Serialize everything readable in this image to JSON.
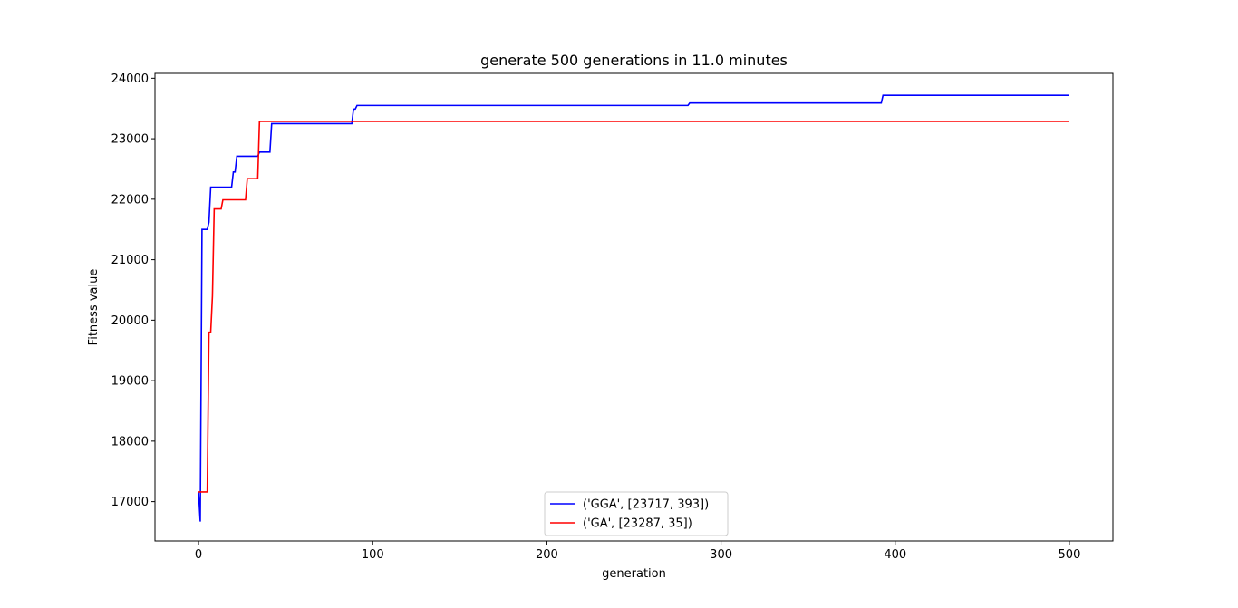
{
  "chart_data": {
    "type": "line",
    "title": "generate 500 generations in 11.0 minutes",
    "xlabel": "generation",
    "ylabel": "Fitness value",
    "xlim": [
      -25,
      525
    ],
    "ylim": [
      16350,
      24080
    ],
    "xticks": [
      0,
      100,
      200,
      300,
      400,
      500
    ],
    "yticks": [
      17000,
      18000,
      19000,
      20000,
      21000,
      22000,
      23000,
      24000
    ],
    "grid": false,
    "legend_position": "lower center",
    "series": [
      {
        "name": "('GGA', [23717, 393])",
        "color": "#0000ff",
        "x": [
          0,
          1,
          2,
          5,
          6,
          7,
          19,
          20,
          21,
          22,
          34,
          35,
          36,
          41,
          42,
          88,
          89,
          90,
          91,
          281,
          282,
          392,
          393,
          500
        ],
        "y": [
          17160,
          16670,
          21500,
          21500,
          21620,
          22200,
          22200,
          22450,
          22450,
          22710,
          22710,
          22780,
          22780,
          22780,
          23250,
          23250,
          23490,
          23490,
          23550,
          23550,
          23590,
          23590,
          23717,
          23717
        ]
      },
      {
        "name": "('GA', [23287, 35])",
        "color": "#ff0000",
        "x": [
          0,
          5,
          6,
          7,
          8,
          9,
          13,
          14,
          27,
          28,
          34,
          35,
          500
        ],
        "y": [
          17160,
          17160,
          19800,
          19800,
          20400,
          21840,
          21840,
          21990,
          21990,
          22340,
          22340,
          23287,
          23287
        ]
      }
    ]
  }
}
